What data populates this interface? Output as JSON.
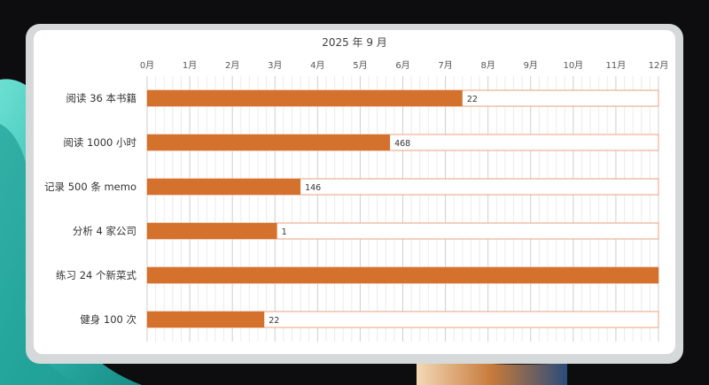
{
  "colors": {
    "bar": "#D4722D",
    "track_border": "#E8A27C",
    "grid": "#D9D9D9",
    "background": "#0D0D0F",
    "accent": "#3CC6B9"
  },
  "chart_data": {
    "type": "bar",
    "orientation": "horizontal",
    "title": "2025 年 9 月",
    "xlabel": "",
    "ylabel": "",
    "x_ticks": [
      "0月",
      "1月",
      "2月",
      "3月",
      "4月",
      "5月",
      "6月",
      "7月",
      "8月",
      "9月",
      "10月",
      "11月",
      "12月"
    ],
    "xlim": [
      0,
      12
    ],
    "grid": true,
    "x_tick_position": "top",
    "categories": [
      "阅读 36 本书籍",
      "阅读 1000 小时",
      "记录 500 条 memo",
      "分析 4 家公司",
      "练习 24 个新菜式",
      "健身 100 次"
    ],
    "values": [
      7.4,
      5.7,
      3.6,
      3.05,
      12,
      2.75
    ],
    "data_labels": [
      "22",
      "468",
      "146",
      "1",
      "",
      "22"
    ]
  }
}
